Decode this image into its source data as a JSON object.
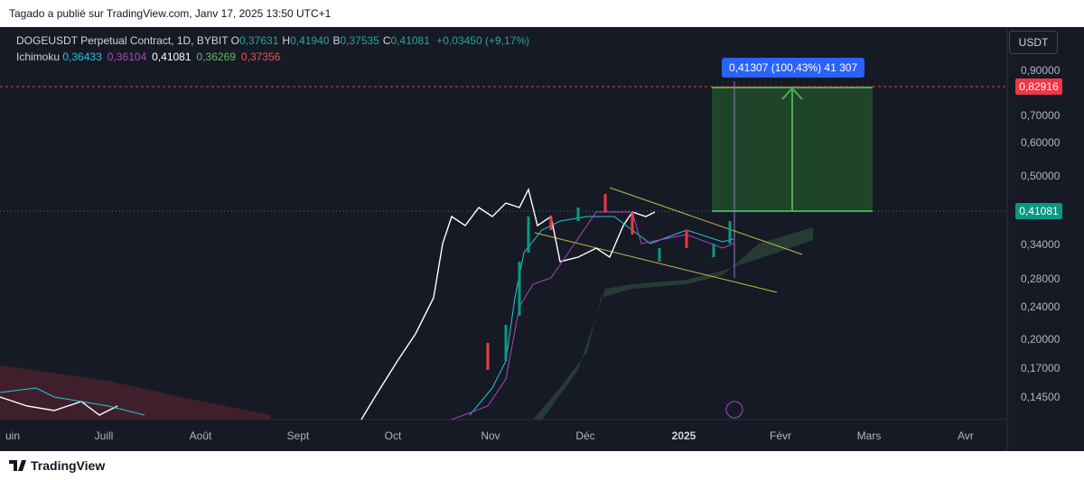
{
  "header": {
    "published": "Tagado a publié sur TradingView.com, Janv 17, 2025 13:50 UTC+1"
  },
  "legend": {
    "symbol": "DOGEUSDT Perpetual Contract, 1D, BYBIT",
    "ohlc": [
      {
        "label": "O",
        "value": "0,37631"
      },
      {
        "label": "H",
        "value": "0,41940"
      },
      {
        "label": "B",
        "value": "0,37535"
      },
      {
        "label": "C",
        "value": "0,41081"
      }
    ],
    "change": "+0,03450 (+9,17%)",
    "indicator": "Ichimoku",
    "indicator_values": [
      "0,36433",
      "0,36104",
      "0,41081",
      "0,36269",
      "0,37356"
    ]
  },
  "currency": "USDT",
  "price_axis": [
    "0,90000",
    "0,70000",
    "0,60000",
    "0,50000",
    "0,34000",
    "0,28000",
    "0,24000",
    "0,20000",
    "0,17000",
    "0,14500"
  ],
  "price_badges": {
    "target": "0,82916",
    "current": "0,41081"
  },
  "measure_label": "0,41307 (100,43%) 41 307",
  "time_axis": [
    "uin",
    "Juill",
    "Août",
    "Sept",
    "Oct",
    "Nov",
    "Déc",
    "2025",
    "Févr",
    "Mars",
    "Avr"
  ],
  "footer": {
    "brand": "TradingView"
  }
}
